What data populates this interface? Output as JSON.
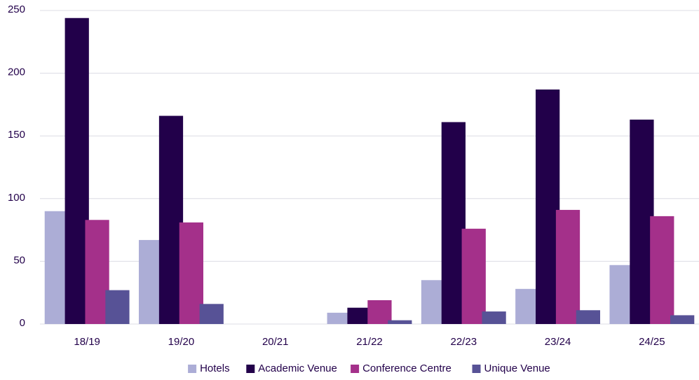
{
  "chart_data": {
    "type": "bar",
    "categories": [
      "18/19",
      "19/20",
      "20/21",
      "21/22",
      "22/23",
      "23/24",
      "24/25"
    ],
    "series": [
      {
        "name": "Hotels",
        "color": "#acadd6",
        "values": [
          90,
          67,
          0,
          9,
          35,
          28,
          47
        ]
      },
      {
        "name": "Academic Venue",
        "color": "#22004a",
        "values": [
          244,
          166,
          0,
          13,
          161,
          187,
          163
        ]
      },
      {
        "name": "Conference Centre",
        "color": "#a4308a",
        "values": [
          83,
          81,
          0,
          19,
          76,
          91,
          86
        ]
      },
      {
        "name": "Unique Venue",
        "color": "#575296",
        "values": [
          27,
          16,
          0,
          3,
          10,
          11,
          7
        ]
      }
    ],
    "ylim": [
      0,
      250
    ],
    "yticks": [
      0,
      50,
      100,
      150,
      200,
      250
    ],
    "grid": true,
    "legend": "bottom"
  }
}
